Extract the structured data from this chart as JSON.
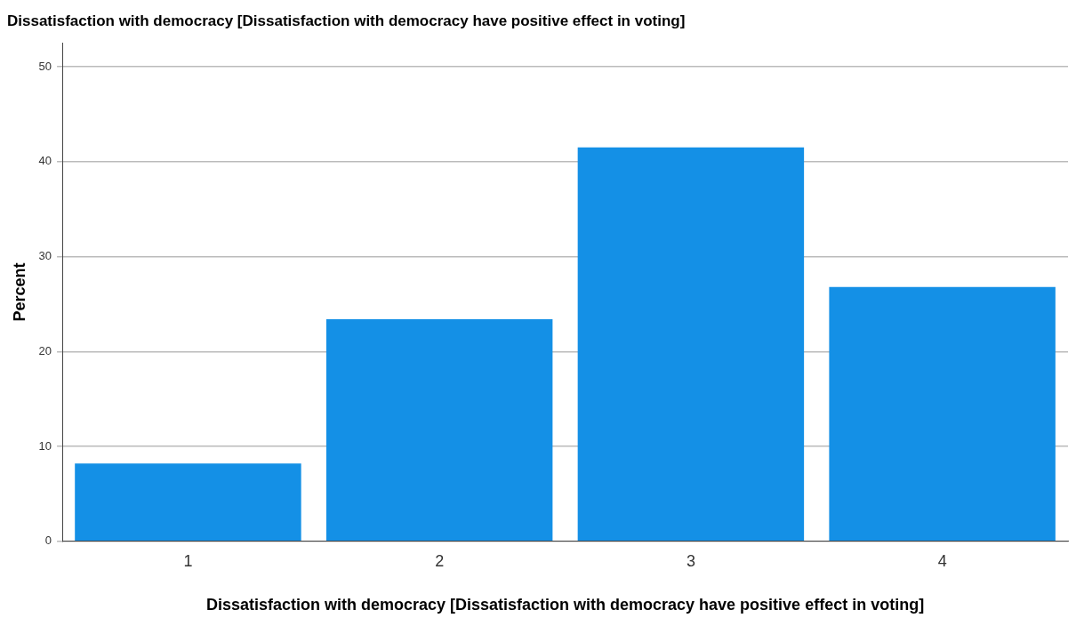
{
  "chart_data": {
    "type": "bar",
    "title": "Dissatisfaction with democracy [Dissatisfaction with democracy have positive effect in voting]",
    "xlabel": "Dissatisfaction with democracy [Dissatisfaction with democracy have positive effect in voting]",
    "ylabel": "Percent",
    "categories": [
      "1",
      "2",
      "3",
      "4"
    ],
    "values": [
      8.2,
      23.4,
      41.5,
      26.8
    ],
    "color": "#1490e6",
    "ylim": [
      0,
      52.5
    ],
    "yticks": [
      0,
      10,
      20,
      30,
      40,
      50
    ],
    "grid": "y",
    "legend": false
  }
}
